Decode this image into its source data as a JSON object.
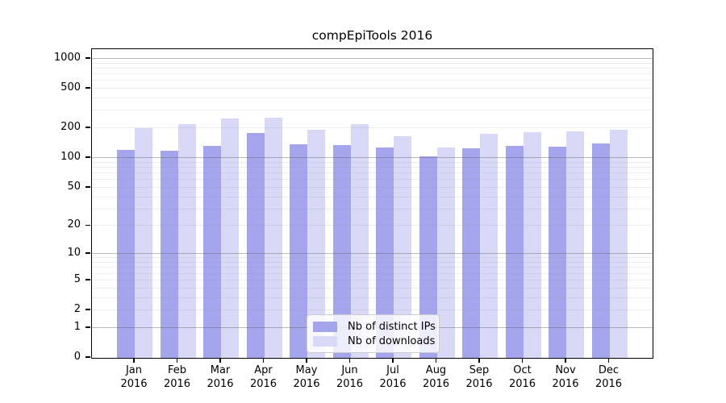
{
  "title": "compEpiTools 2016",
  "colors": {
    "ips_bar": "#a5a5ee",
    "downloads_bar": "#d9d9f7",
    "spine": "#000000"
  },
  "legend": {
    "items": [
      {
        "label": "Nb of distinct IPs",
        "series": "ips"
      },
      {
        "label": "Nb of downloads",
        "series": "downloads"
      }
    ]
  },
  "y_axis": {
    "tick_labels": [
      "1000",
      "500",
      "200",
      "100",
      "50",
      "20",
      "10",
      "5",
      "2",
      "1",
      "0"
    ],
    "tick_values": [
      1000,
      500,
      200,
      100,
      50,
      20,
      10,
      5,
      2,
      1,
      0
    ]
  },
  "x_axis": {
    "months": [
      "Jan",
      "Feb",
      "Mar",
      "Apr",
      "May",
      "Jun",
      "Jul",
      "Aug",
      "Sep",
      "Oct",
      "Nov",
      "Dec"
    ],
    "year": "2016"
  },
  "chart_data": {
    "type": "bar",
    "title": "compEpiTools 2016",
    "categories": [
      "Jan 2016",
      "Feb 2016",
      "Mar 2016",
      "Apr 2016",
      "May 2016",
      "Jun 2016",
      "Jul 2016",
      "Aug 2016",
      "Sep 2016",
      "Oct 2016",
      "Nov 2016",
      "Dec 2016"
    ],
    "series": [
      {
        "name": "Nb of distinct IPs",
        "color": "#a5a5ee",
        "values": [
          121,
          118,
          132,
          179,
          137,
          136,
          128,
          104,
          126,
          134,
          131,
          141
        ]
      },
      {
        "name": "Nb of downloads",
        "color": "#d9d9f7",
        "values": [
          200,
          222,
          253,
          255,
          193,
          219,
          165,
          128,
          176,
          181,
          187,
          193
        ]
      }
    ],
    "yscale": "log10(1+y)",
    "y_ticks": [
      0,
      1,
      2,
      5,
      10,
      20,
      50,
      100,
      200,
      500,
      1000
    ],
    "ylim": [
      0,
      1270
    ],
    "grid": "horizontal, minor at 2-9 per decade, major at powers of 10",
    "legend_position": "inside bottom-center",
    "xlabel": "",
    "ylabel": ""
  }
}
